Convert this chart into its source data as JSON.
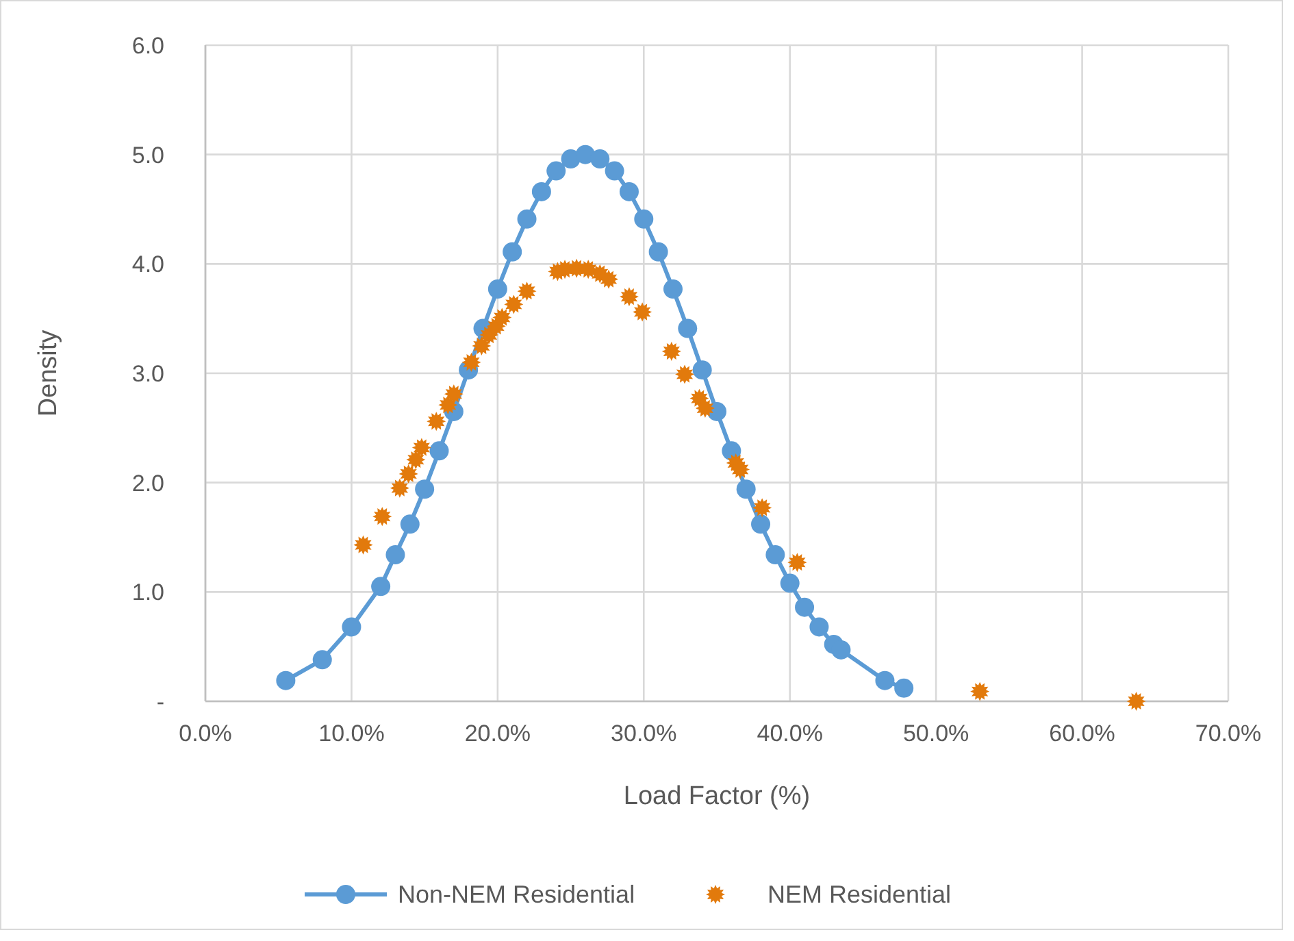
{
  "chart_data": {
    "type": "line",
    "xlabel": "Load Factor (%)",
    "ylabel": "Density",
    "xlim": [
      0,
      0.7
    ],
    "xticks": [
      {
        "value": 0,
        "label": "0.0%"
      },
      {
        "value": 0.1,
        "label": "10.0%"
      },
      {
        "value": 0.2,
        "label": "20.0%"
      },
      {
        "value": 0.3,
        "label": "30.0%"
      },
      {
        "value": 0.4,
        "label": "40.0%"
      },
      {
        "value": 0.5,
        "label": "50.0%"
      },
      {
        "value": 0.6,
        "label": "60.0%"
      },
      {
        "value": 0.7,
        "label": "70.0%"
      }
    ],
    "ylim": [
      0,
      6
    ],
    "yticks": [
      {
        "value": 0,
        "label": "-"
      },
      {
        "value": 1,
        "label": "1.0"
      },
      {
        "value": 2,
        "label": "2.0"
      },
      {
        "value": 3,
        "label": "3.0"
      },
      {
        "value": 4,
        "label": "4.0"
      },
      {
        "value": 5,
        "label": "5.0"
      },
      {
        "value": 6,
        "label": "6.0"
      }
    ],
    "grid": true,
    "legend": "bottom",
    "series": [
      {
        "name": "Non-NEM Residential",
        "marker": "circle",
        "line_style": "solid",
        "color": "#5b9bd5",
        "x": [
          0.055,
          0.08,
          0.1,
          0.12,
          0.13,
          0.14,
          0.15,
          0.16,
          0.17,
          0.18,
          0.19,
          0.2,
          0.21,
          0.22,
          0.23,
          0.24,
          0.25,
          0.26,
          0.27,
          0.28,
          0.29,
          0.3,
          0.31,
          0.32,
          0.33,
          0.34,
          0.35,
          0.36,
          0.37,
          0.38,
          0.39,
          0.4,
          0.41,
          0.42,
          0.43,
          0.435,
          0.465,
          0.478
        ],
        "values": [
          0.19,
          0.38,
          0.68,
          1.05,
          1.34,
          1.62,
          1.94,
          2.29,
          2.65,
          3.03,
          3.41,
          3.77,
          4.11,
          4.41,
          4.66,
          4.85,
          4.96,
          5.0,
          4.96,
          4.85,
          4.66,
          4.41,
          4.11,
          3.77,
          3.41,
          3.03,
          2.65,
          2.29,
          1.94,
          1.62,
          1.34,
          1.08,
          0.86,
          0.68,
          0.52,
          0.47,
          0.19,
          0.12
        ]
      },
      {
        "name": "NEM Residential",
        "type": "scatter",
        "marker": "star",
        "color": "#e27a0c",
        "x": [
          0.108,
          0.121,
          0.133,
          0.139,
          0.144,
          0.148,
          0.158,
          0.166,
          0.17,
          0.182,
          0.189,
          0.194,
          0.199,
          0.203,
          0.211,
          0.22,
          0.241,
          0.246,
          0.254,
          0.262,
          0.27,
          0.276,
          0.29,
          0.299,
          0.319,
          0.328,
          0.338,
          0.342,
          0.363,
          0.366,
          0.381,
          0.405,
          0.53,
          0.637
        ],
        "values": [
          1.43,
          1.69,
          1.95,
          2.08,
          2.21,
          2.32,
          2.56,
          2.71,
          2.81,
          3.1,
          3.25,
          3.35,
          3.43,
          3.51,
          3.63,
          3.75,
          3.93,
          3.95,
          3.96,
          3.95,
          3.91,
          3.86,
          3.7,
          3.56,
          3.2,
          2.99,
          2.77,
          2.68,
          2.18,
          2.12,
          1.77,
          1.27,
          0.09,
          0.0
        ]
      }
    ]
  }
}
